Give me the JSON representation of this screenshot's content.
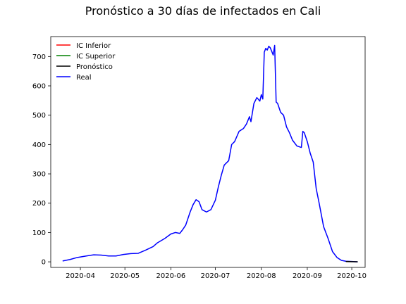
{
  "chart_data": {
    "type": "line",
    "title": "Pronóstico a 30 días de infectados en Cali",
    "xlabel": "",
    "ylabel": "",
    "x_axis": {
      "type": "date",
      "range": [
        "2020-03-12",
        "2020-10-10"
      ],
      "ticks": [
        "2020-04-01",
        "2020-05-01",
        "2020-06-01",
        "2020-07-01",
        "2020-08-01",
        "2020-09-01",
        "2020-10-01"
      ],
      "tick_labels": [
        "2020-04",
        "2020-05",
        "2020-06",
        "2020-07",
        "2020-08",
        "2020-09",
        "2020-10"
      ]
    },
    "y_axis": {
      "range": [
        -19,
        768
      ],
      "ticks": [
        0,
        100,
        200,
        300,
        400,
        500,
        600,
        700
      ],
      "tick_labels": [
        "0",
        "100",
        "200",
        "300",
        "400",
        "500",
        "600",
        "700"
      ]
    },
    "grid": false,
    "legend": {
      "position": "top-left",
      "entries": [
        {
          "label": "IC Inferior",
          "color": "#ff0000"
        },
        {
          "label": "IC Superior",
          "color": "#008000"
        },
        {
          "label": "Pronóstico",
          "color": "#000000"
        },
        {
          "label": "Real",
          "color": "#0000ff"
        }
      ]
    },
    "series": [
      {
        "name": "Real",
        "color": "#0000ff",
        "points": [
          [
            "2020-03-20",
            3
          ],
          [
            "2020-03-25",
            8
          ],
          [
            "2020-03-30",
            15
          ],
          [
            "2020-04-05",
            20
          ],
          [
            "2020-04-10",
            24
          ],
          [
            "2020-04-15",
            23
          ],
          [
            "2020-04-20",
            20
          ],
          [
            "2020-04-25",
            20
          ],
          [
            "2020-04-30",
            25
          ],
          [
            "2020-05-05",
            28
          ],
          [
            "2020-05-10",
            29
          ],
          [
            "2020-05-15",
            40
          ],
          [
            "2020-05-20",
            52
          ],
          [
            "2020-05-23",
            65
          ],
          [
            "2020-05-28",
            80
          ],
          [
            "2020-06-01",
            95
          ],
          [
            "2020-06-04",
            100
          ],
          [
            "2020-06-07",
            97
          ],
          [
            "2020-06-09",
            110
          ],
          [
            "2020-06-11",
            125
          ],
          [
            "2020-06-14",
            170
          ],
          [
            "2020-06-16",
            195
          ],
          [
            "2020-06-18",
            212
          ],
          [
            "2020-06-20",
            205
          ],
          [
            "2020-06-22",
            178
          ],
          [
            "2020-06-25",
            170
          ],
          [
            "2020-06-28",
            178
          ],
          [
            "2020-07-01",
            210
          ],
          [
            "2020-07-03",
            255
          ],
          [
            "2020-07-05",
            295
          ],
          [
            "2020-07-07",
            330
          ],
          [
            "2020-07-10",
            345
          ],
          [
            "2020-07-12",
            400
          ],
          [
            "2020-07-14",
            410
          ],
          [
            "2020-07-17",
            445
          ],
          [
            "2020-07-20",
            455
          ],
          [
            "2020-07-22",
            470
          ],
          [
            "2020-07-24",
            495
          ],
          [
            "2020-07-25",
            478
          ],
          [
            "2020-07-27",
            540
          ],
          [
            "2020-07-29",
            560
          ],
          [
            "2020-07-31",
            548
          ],
          [
            "2020-08-01",
            570
          ],
          [
            "2020-08-02",
            555
          ],
          [
            "2020-08-03",
            715
          ],
          [
            "2020-08-04",
            728
          ],
          [
            "2020-08-05",
            722
          ],
          [
            "2020-08-06",
            735
          ],
          [
            "2020-08-07",
            730
          ],
          [
            "2020-08-08",
            718
          ],
          [
            "2020-08-09",
            705
          ],
          [
            "2020-08-10",
            738
          ],
          [
            "2020-08-11",
            545
          ],
          [
            "2020-08-12",
            540
          ],
          [
            "2020-08-14",
            510
          ],
          [
            "2020-08-16",
            500
          ],
          [
            "2020-08-18",
            460
          ],
          [
            "2020-08-20",
            440
          ],
          [
            "2020-08-22",
            415
          ],
          [
            "2020-08-25",
            395
          ],
          [
            "2020-08-28",
            390
          ],
          [
            "2020-08-29",
            445
          ],
          [
            "2020-08-30",
            440
          ],
          [
            "2020-09-01",
            410
          ],
          [
            "2020-09-03",
            370
          ],
          [
            "2020-09-05",
            340
          ],
          [
            "2020-09-07",
            250
          ],
          [
            "2020-09-09",
            200
          ],
          [
            "2020-09-12",
            120
          ],
          [
            "2020-09-15",
            80
          ],
          [
            "2020-09-18",
            35
          ],
          [
            "2020-09-21",
            15
          ],
          [
            "2020-09-24",
            5
          ],
          [
            "2020-09-27",
            2
          ],
          [
            "2020-10-01",
            1
          ],
          [
            "2020-10-05",
            0
          ]
        ]
      },
      {
        "name": "Pronóstico",
        "color": "#000000",
        "points": [
          [
            "2020-09-27",
            1
          ],
          [
            "2020-10-01",
            0.5
          ],
          [
            "2020-10-05",
            0.2
          ]
        ]
      }
    ]
  }
}
